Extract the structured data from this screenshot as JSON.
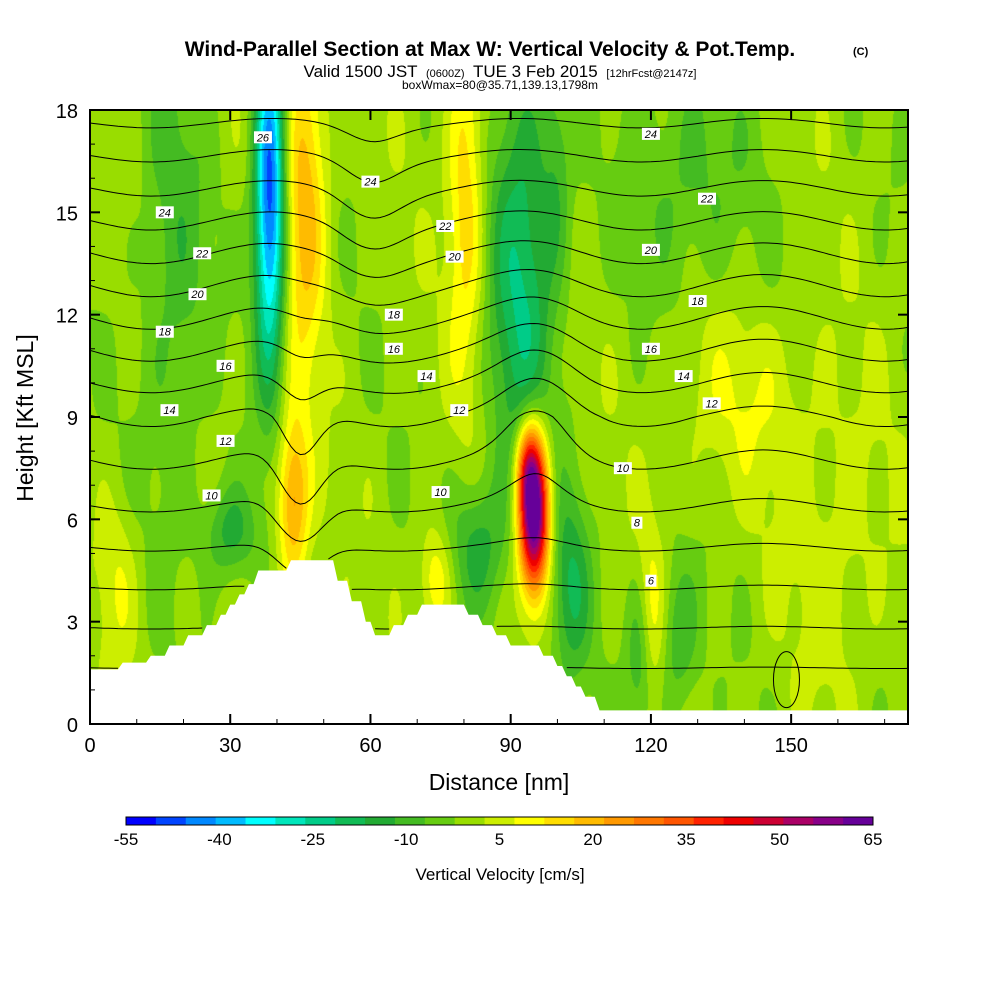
{
  "title": "Wind-Parallel Section at Max W: Vertical Velocity & Pot.Temp.",
  "copyright": "(C)",
  "subtitle": {
    "prefix": "Valid 1500 JST",
    "zulu": "(0600Z)",
    "date": "TUE 3 Feb 2015",
    "forecast": "[12hrFcst@2147z]"
  },
  "box_text": "boxWmax=80@35.71,139.13,1798m",
  "chart_data": {
    "type": "heatmap",
    "xlabel": "Distance [nm]",
    "ylabel": "Height [Kft MSL]",
    "xlim": [
      0,
      175
    ],
    "ylim": [
      0,
      18
    ],
    "xticks": [
      0,
      30,
      60,
      90,
      120,
      150
    ],
    "yticks": [
      0,
      3,
      6,
      9,
      12,
      15,
      18
    ],
    "colorbar": {
      "label": "Vertical Velocity [cm/s]",
      "ticks": [
        -55,
        -40,
        -25,
        -10,
        5,
        20,
        35,
        50,
        65
      ],
      "levels": [
        -55,
        -50,
        -45,
        -40,
        -35,
        -30,
        -25,
        -20,
        -15,
        -10,
        -5,
        0,
        5,
        10,
        15,
        20,
        25,
        30,
        35,
        40,
        45,
        50,
        55,
        60,
        65
      ],
      "colors": [
        "#0000ff",
        "#0044ff",
        "#0088ff",
        "#00bbff",
        "#00ffff",
        "#00e6bb",
        "#00cc88",
        "#11bb55",
        "#22aa33",
        "#44bb22",
        "#66cc11",
        "#99dd00",
        "#ccee00",
        "#ffff00",
        "#ffdd00",
        "#ffbb00",
        "#ff9900",
        "#ff7700",
        "#ff5500",
        "#ff2200",
        "#ee0000",
        "#cc0033",
        "#aa0066",
        "#880088",
        "#660099"
      ]
    },
    "theta_contours": {
      "levels": [
        6,
        8,
        10,
        12,
        14,
        16,
        18,
        20,
        22,
        24,
        26
      ],
      "labels": [
        {
          "text": "26",
          "x": 37,
          "y": 17.2
        },
        {
          "text": "24",
          "x": 16,
          "y": 15.0
        },
        {
          "text": "24",
          "x": 60,
          "y": 15.9
        },
        {
          "text": "24",
          "x": 120,
          "y": 17.3
        },
        {
          "text": "22",
          "x": 24,
          "y": 13.8
        },
        {
          "text": "22",
          "x": 76,
          "y": 14.6
        },
        {
          "text": "22",
          "x": 132,
          "y": 15.4
        },
        {
          "text": "20",
          "x": 23,
          "y": 12.6
        },
        {
          "text": "20",
          "x": 78,
          "y": 13.7
        },
        {
          "text": "20",
          "x": 120,
          "y": 13.9
        },
        {
          "text": "18",
          "x": 16,
          "y": 11.5
        },
        {
          "text": "18",
          "x": 65,
          "y": 12.0
        },
        {
          "text": "18",
          "x": 130,
          "y": 12.4
        },
        {
          "text": "16",
          "x": 29,
          "y": 10.5
        },
        {
          "text": "16",
          "x": 65,
          "y": 11.0
        },
        {
          "text": "16",
          "x": 120,
          "y": 11.0
        },
        {
          "text": "14",
          "x": 17,
          "y": 9.2
        },
        {
          "text": "14",
          "x": 72,
          "y": 10.2
        },
        {
          "text": "14",
          "x": 127,
          "y": 10.2
        },
        {
          "text": "12",
          "x": 29,
          "y": 8.3
        },
        {
          "text": "12",
          "x": 79,
          "y": 9.2
        },
        {
          "text": "12",
          "x": 133,
          "y": 9.4
        },
        {
          "text": "10",
          "x": 26,
          "y": 6.7
        },
        {
          "text": "10",
          "x": 75,
          "y": 6.8
        },
        {
          "text": "10",
          "x": 114,
          "y": 7.5
        },
        {
          "text": "8",
          "x": 117,
          "y": 5.9
        },
        {
          "text": "6",
          "x": 120,
          "y": 4.2
        }
      ]
    },
    "terrain_kft": [
      [
        0,
        1.6
      ],
      [
        6,
        1.6
      ],
      [
        7,
        1.8
      ],
      [
        12,
        1.8
      ],
      [
        13,
        2.0
      ],
      [
        16,
        2.0
      ],
      [
        17,
        2.3
      ],
      [
        20,
        2.3
      ],
      [
        21,
        2.6
      ],
      [
        24,
        2.6
      ],
      [
        25,
        2.9
      ],
      [
        27,
        2.9
      ],
      [
        28,
        3.2
      ],
      [
        29,
        3.2
      ],
      [
        30,
        3.5
      ],
      [
        31,
        3.5
      ],
      [
        32,
        3.8
      ],
      [
        33,
        3.8
      ],
      [
        34,
        4.1
      ],
      [
        35,
        4.1
      ],
      [
        36,
        4.5
      ],
      [
        42,
        4.5
      ],
      [
        43,
        4.8
      ],
      [
        52,
        4.8
      ],
      [
        53,
        4.2
      ],
      [
        55,
        4.2
      ],
      [
        56,
        3.6
      ],
      [
        58,
        3.6
      ],
      [
        59,
        3.0
      ],
      [
        60,
        3.0
      ],
      [
        61,
        2.6
      ],
      [
        64,
        2.6
      ],
      [
        65,
        2.9
      ],
      [
        67,
        2.9
      ],
      [
        68,
        3.2
      ],
      [
        70,
        3.2
      ],
      [
        71,
        3.5
      ],
      [
        80,
        3.5
      ],
      [
        81,
        3.2
      ],
      [
        83,
        3.2
      ],
      [
        84,
        2.9
      ],
      [
        86,
        2.9
      ],
      [
        87,
        2.6
      ],
      [
        89,
        2.6
      ],
      [
        90,
        2.3
      ],
      [
        96,
        2.3
      ],
      [
        97,
        2.0
      ],
      [
        99,
        2.0
      ],
      [
        100,
        1.7
      ],
      [
        101,
        1.7
      ],
      [
        102,
        1.4
      ],
      [
        103,
        1.4
      ],
      [
        104,
        1.1
      ],
      [
        105,
        1.1
      ],
      [
        106,
        0.8
      ],
      [
        108,
        0.8
      ],
      [
        109,
        0.4
      ],
      [
        175,
        0.4
      ]
    ],
    "w_features": [
      {
        "x": 95,
        "z": 6.2,
        "sx": 2.3,
        "sz": 1.6,
        "w": 78
      },
      {
        "x": 93.5,
        "z": 7.6,
        "sx": 1.8,
        "sz": 0.9,
        "w": 22
      },
      {
        "x": 43.5,
        "z": 6.5,
        "sx": 2.4,
        "sz": 1.7,
        "w": 26
      },
      {
        "x": 46,
        "z": 15.5,
        "sx": 3.2,
        "sz": 3.6,
        "w": 22
      },
      {
        "x": 80.5,
        "z": 15.5,
        "sx": 2.8,
        "sz": 3.8,
        "w": 18
      },
      {
        "x": 74,
        "z": 4.2,
        "sx": 2.4,
        "sz": 1.1,
        "w": 14
      },
      {
        "x": 120,
        "z": 3.0,
        "sx": 2.0,
        "sz": 1.8,
        "w": 14
      },
      {
        "x": 6,
        "z": 4.2,
        "sx": 3.0,
        "sz": 1.8,
        "w": 8
      },
      {
        "x": 140,
        "z": 9.5,
        "sx": 12,
        "sz": 2.0,
        "w": 7
      },
      {
        "x": 160,
        "z": 5.0,
        "sx": 8,
        "sz": 3.0,
        "w": 6
      },
      {
        "x": 38.5,
        "z": 15.5,
        "sx": 2.3,
        "sz": 3.5,
        "w": -52
      },
      {
        "x": 92.5,
        "z": 13.0,
        "sx": 5.0,
        "sz": 4.6,
        "w": -22
      },
      {
        "x": 100,
        "z": 16.0,
        "sx": 2.0,
        "sz": 2.0,
        "w": -8
      },
      {
        "x": 30,
        "z": 5.6,
        "sx": 4.0,
        "sz": 1.0,
        "w": -15
      },
      {
        "x": 83,
        "z": 5.2,
        "sx": 4.0,
        "sz": 1.4,
        "w": -15
      },
      {
        "x": 103,
        "z": 4.0,
        "sx": 3.0,
        "sz": 2.0,
        "w": -16
      },
      {
        "x": 118,
        "z": 2.0,
        "sx": 2.2,
        "sz": 1.6,
        "w": -14
      },
      {
        "x": 126,
        "z": 2.5,
        "sx": 3.0,
        "sz": 1.6,
        "w": -12
      },
      {
        "x": 18,
        "z": 13.5,
        "sx": 5.0,
        "sz": 5.0,
        "w": -10
      },
      {
        "x": 128,
        "z": 16.0,
        "sx": 9.0,
        "sz": 2.5,
        "w": -9
      }
    ]
  }
}
